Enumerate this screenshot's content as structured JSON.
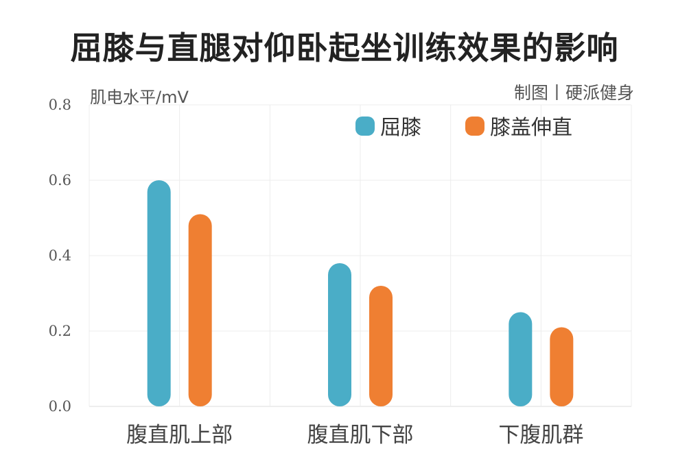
{
  "chart_data": {
    "type": "bar",
    "title": "屈膝与直腿对仰卧起坐训练效果的影响",
    "ylabel": "肌电水平/mV",
    "xlabel": "",
    "credit": "制图丨硬派健身",
    "categories": [
      "腹直肌上部",
      "腹直肌下部",
      "下腹肌群"
    ],
    "series": [
      {
        "name": "屈膝",
        "color": "#4aadc7",
        "values": [
          0.6,
          0.38,
          0.25
        ]
      },
      {
        "name": "膝盖伸直",
        "color": "#ef7f32",
        "values": [
          0.51,
          0.32,
          0.21
        ]
      }
    ],
    "ylim": [
      0,
      0.8
    ],
    "yticks": [
      "0.0",
      "0.2",
      "0.4",
      "0.6",
      "0.8"
    ],
    "grid": true,
    "legend_position": "top-right"
  }
}
